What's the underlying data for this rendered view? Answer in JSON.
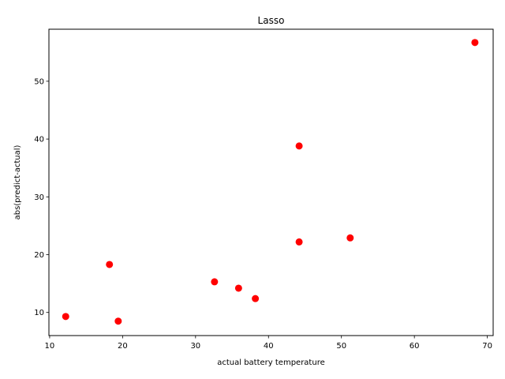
{
  "chart_data": {
    "type": "scatter",
    "title": "Lasso",
    "xlabel": "actual battery temperature",
    "ylabel": "abs(predict-actual)",
    "xlim": [
      9.9,
      70.8
    ],
    "ylim": [
      6.0,
      59.0
    ],
    "xticks": [
      10,
      20,
      30,
      40,
      50,
      60,
      70
    ],
    "yticks": [
      10,
      20,
      30,
      40,
      50
    ],
    "grid": false,
    "marker_color": "#ff0000",
    "points": [
      {
        "x": 12.2,
        "y": 9.3
      },
      {
        "x": 18.2,
        "y": 18.3
      },
      {
        "x": 19.4,
        "y": 8.5
      },
      {
        "x": 32.6,
        "y": 15.3
      },
      {
        "x": 35.9,
        "y": 14.2
      },
      {
        "x": 38.2,
        "y": 12.4
      },
      {
        "x": 44.2,
        "y": 38.8
      },
      {
        "x": 44.2,
        "y": 22.2
      },
      {
        "x": 51.2,
        "y": 22.9
      },
      {
        "x": 68.3,
        "y": 56.7
      }
    ]
  }
}
